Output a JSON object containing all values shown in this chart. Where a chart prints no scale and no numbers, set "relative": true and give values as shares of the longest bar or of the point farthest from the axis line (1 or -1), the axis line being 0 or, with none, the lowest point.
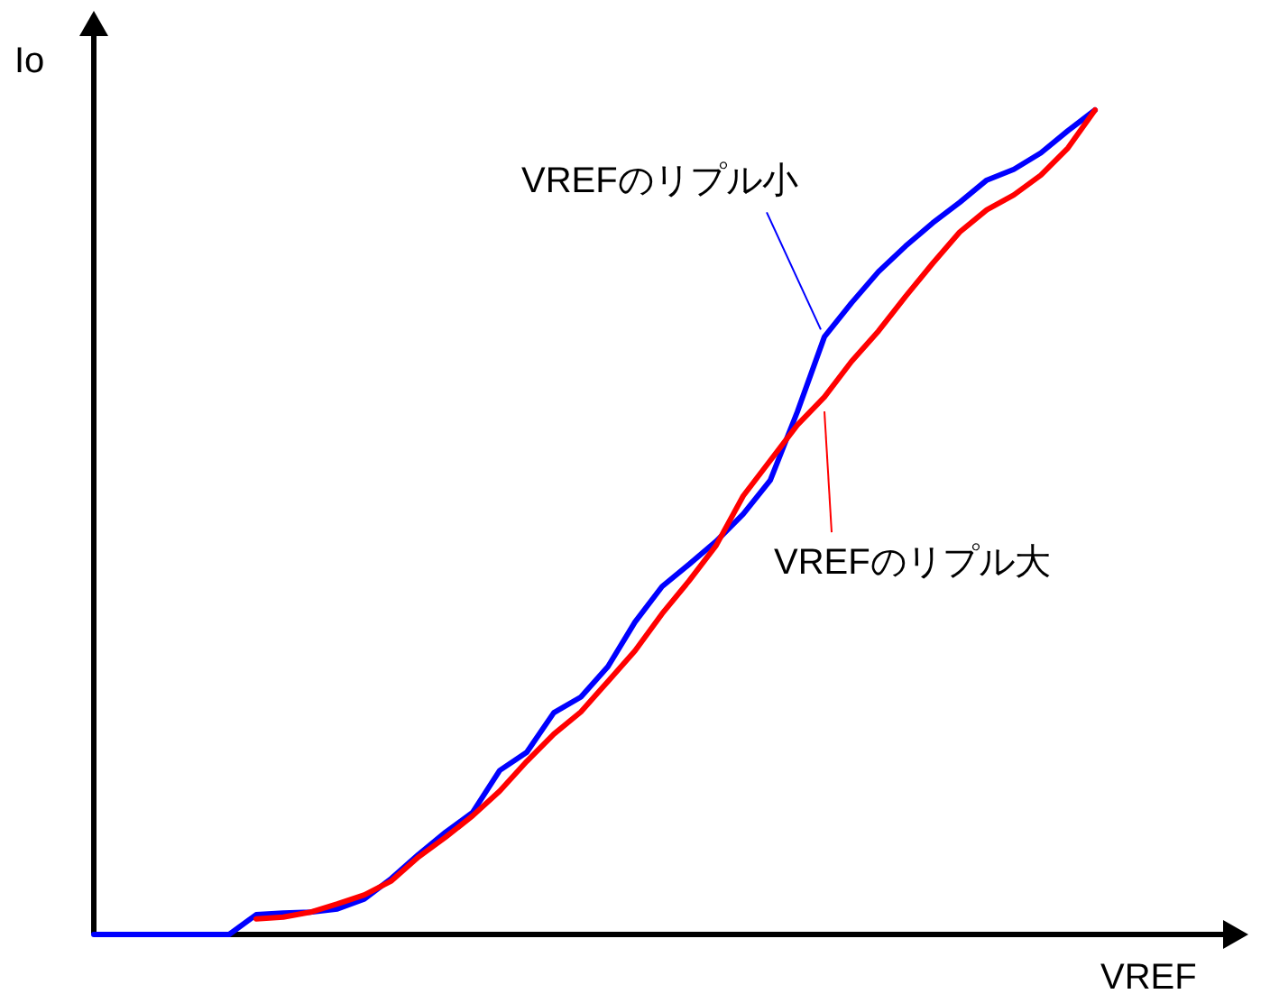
{
  "chart_data": {
    "type": "line",
    "relative": true,
    "xlabel": "VREF",
    "ylabel": "Io",
    "legend": false,
    "categories": [
      null,
      null,
      null,
      null,
      null,
      null,
      null,
      null,
      null,
      null,
      null,
      null,
      null,
      null,
      null,
      null,
      null,
      null,
      null,
      null,
      null,
      null,
      null,
      null,
      null,
      null,
      null,
      null,
      null,
      null,
      null,
      null,
      null,
      null,
      null,
      null,
      null,
      null
    ],
    "series": [
      {
        "name": "VREFのリプル小",
        "color": "#0000ff",
        "values": [
          0,
          0,
          0,
          0,
          0,
          0,
          0.024,
          0.026,
          0.027,
          0.031,
          0.043,
          0.068,
          0.097,
          0.124,
          0.148,
          0.199,
          0.221,
          0.269,
          0.288,
          0.325,
          0.379,
          0.422,
          0.449,
          0.477,
          0.51,
          0.551,
          0.634,
          0.725,
          0.766,
          0.804,
          0.835,
          0.863,
          0.888,
          0.915,
          0.928,
          0.948,
          0.975,
          1
        ]
      },
      {
        "name": "VREFのリプル大",
        "color": "#ff0000",
        "values": [
          null,
          null,
          null,
          null,
          null,
          null,
          0.019,
          0.021,
          0.027,
          0.037,
          0.048,
          0.065,
          0.094,
          0.118,
          0.144,
          0.174,
          0.21,
          0.243,
          0.27,
          0.307,
          0.344,
          0.389,
          0.429,
          0.472,
          0.532,
          0.575,
          0.618,
          0.652,
          0.695,
          0.732,
          0.774,
          0.814,
          0.852,
          0.879,
          0.897,
          0.921,
          0.954,
          1
        ]
      }
    ]
  }
}
